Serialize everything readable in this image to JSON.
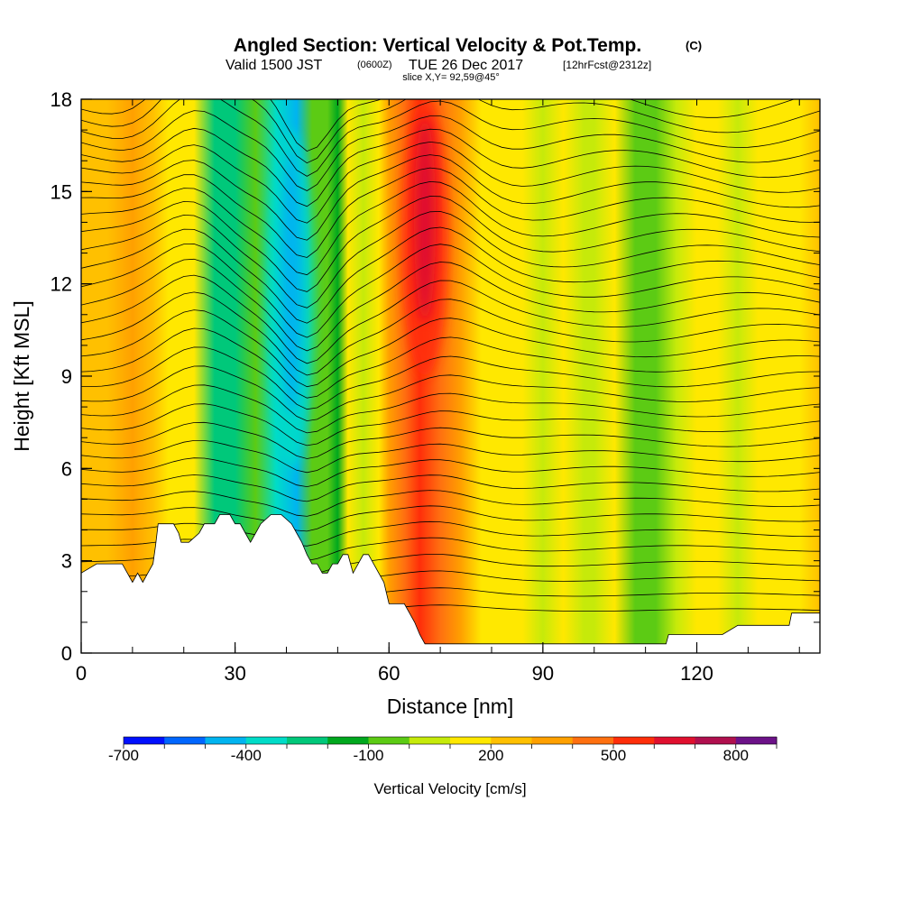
{
  "title": {
    "main": "Angled Section: Vertical Velocity & Pot.Temp.",
    "main_unit": "(C)",
    "valid_prefix": "Valid 1500 JST",
    "valid_utc": "(0600Z)",
    "valid_date": "TUE 26 Dec 2017",
    "forecast": "[12hrFcst@2312z]",
    "slice": "slice X,Y= 92,59@45°"
  },
  "colorbar": {
    "label": "Vertical Velocity [cm/s]",
    "tick_labels": [
      "-700",
      "-400",
      "-100",
      "200",
      "500",
      "800"
    ],
    "levels": [
      -700,
      -600,
      -500,
      -400,
      -300,
      -200,
      -100,
      0,
      100,
      200,
      300,
      400,
      500,
      600,
      700,
      800,
      900
    ],
    "colors": [
      "#0010ff",
      "#0066ff",
      "#00b4f0",
      "#00dcc8",
      "#00c87a",
      "#00a81e",
      "#5ccb14",
      "#c6ea0a",
      "#ffe800",
      "#ffc000",
      "#ffa000",
      "#ff7010",
      "#ff2e0a",
      "#e0102e",
      "#b0104e",
      "#6c1288"
    ]
  },
  "chart_data": {
    "type": "heatmap",
    "title": "Angled Section: Vertical Velocity & Pot.Temp. (C)",
    "xlabel": "Distance [nm]",
    "ylabel": "Height [Kft MSL]",
    "xlim": [
      0,
      144
    ],
    "ylim": [
      0,
      18
    ],
    "xticks": [
      0,
      30,
      60,
      90,
      120
    ],
    "yticks": [
      0,
      3,
      6,
      9,
      12,
      15,
      18
    ],
    "x_tick_labels": [
      "0",
      "30",
      "60",
      "90",
      "120"
    ],
    "y_tick_labels": [
      "0",
      "3",
      "6",
      "9",
      "12",
      "15",
      "18"
    ],
    "colorbar_label": "Vertical Velocity [cm/s]",
    "colorbar_levels_cm_s": [
      -700,
      -600,
      -500,
      -400,
      -300,
      -200,
      -100,
      0,
      100,
      200,
      300,
      400,
      500,
      600,
      700,
      800,
      900
    ],
    "shading_column_x": [
      0,
      5,
      10,
      14,
      17,
      22,
      26,
      30,
      34,
      38,
      42,
      45,
      48,
      50,
      52,
      55,
      58,
      60,
      63,
      66,
      70,
      74,
      78,
      82,
      86,
      90,
      94,
      98,
      100,
      104,
      108,
      112,
      116,
      120,
      124,
      128,
      132,
      136,
      140,
      144
    ],
    "shading_column_category": [
      2,
      2,
      3,
      2,
      1,
      1,
      -3,
      -3,
      -1,
      -4,
      -5,
      -1,
      -1,
      -2,
      1,
      0,
      1,
      3,
      4,
      5,
      4,
      3,
      1,
      1,
      1,
      0,
      1,
      0,
      0,
      1,
      -1,
      -1,
      0,
      1,
      1,
      0,
      1,
      1,
      1,
      2
    ],
    "updraft_core": {
      "x_center": 67,
      "height_range_kft": [
        9,
        18
      ],
      "max_level_cm_s": 600
    },
    "downdraft_core": {
      "x_center": 41,
      "height_range_kft": [
        6,
        17
      ],
      "min_level_cm_s": -500
    },
    "terrain_height_kft": {
      "x": [
        0,
        3,
        8,
        9,
        10,
        11,
        12,
        13,
        14,
        14.5,
        15,
        18,
        19,
        19.5,
        20,
        21,
        23,
        24,
        25,
        26,
        27,
        28,
        29,
        30,
        31,
        32,
        33,
        34,
        35,
        37,
        39,
        41,
        42,
        43,
        44,
        45,
        46,
        47,
        48,
        49,
        50,
        51,
        52,
        53,
        54,
        55,
        56,
        57,
        58,
        59,
        60,
        61,
        62,
        63,
        64,
        65,
        66,
        67,
        68,
        69,
        70,
        110,
        112,
        114,
        114.5,
        115,
        120,
        125,
        128,
        135,
        138,
        138.5,
        144
      ],
      "height": [
        2.6,
        2.9,
        2.9,
        2.6,
        2.3,
        2.6,
        2.3,
        2.6,
        2.9,
        3.5,
        4.2,
        4.2,
        3.9,
        3.6,
        3.6,
        3.6,
        3.9,
        4.2,
        4.2,
        4.2,
        4.5,
        4.5,
        4.5,
        4.2,
        4.2,
        3.9,
        3.6,
        3.9,
        4.2,
        4.5,
        4.5,
        4.2,
        3.9,
        3.6,
        3.2,
        2.9,
        2.9,
        2.6,
        2.6,
        2.9,
        2.9,
        3.2,
        3.2,
        2.6,
        2.9,
        3.2,
        3.2,
        2.9,
        2.6,
        2.3,
        1.6,
        1.6,
        1.6,
        1.6,
        1.3,
        1.0,
        0.6,
        0.3,
        0.3,
        0.3,
        0.3,
        0.3,
        0.3,
        0.3,
        0.6,
        0.6,
        0.6,
        0.6,
        0.9,
        0.9,
        0.9,
        1.3,
        1.3
      ]
    },
    "contour_field": "Potential temperature (C), contour interval 1"
  }
}
